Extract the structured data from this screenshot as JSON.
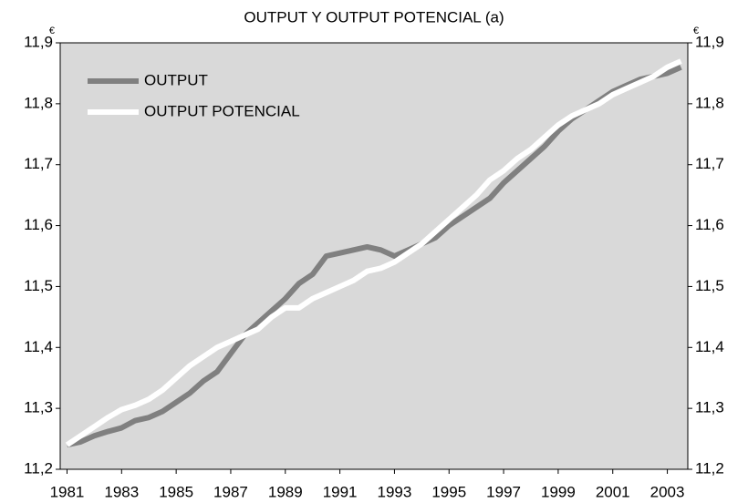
{
  "chart_data": {
    "type": "line",
    "title": "OUTPUT Y OUTPUT POTENCIAL (a)",
    "y_unit": "€",
    "y2_unit": "€",
    "x": [
      1981,
      1981.5,
      1982,
      1982.5,
      1983,
      1983.5,
      1984,
      1984.5,
      1985,
      1985.5,
      1986,
      1986.5,
      1987,
      1987.5,
      1988,
      1988.5,
      1989,
      1989.5,
      1990,
      1990.5,
      1991,
      1991.5,
      1992,
      1992.5,
      1993,
      1993.5,
      1994,
      1994.5,
      1995,
      1995.5,
      1996,
      1996.5,
      1997,
      1997.5,
      1998,
      1998.5,
      1999,
      1999.5,
      2000,
      2000.5,
      2001,
      2001.5,
      2002,
      2002.5,
      2003,
      2003.5
    ],
    "series": [
      {
        "name": "OUTPUT",
        "color": "#808080",
        "values": [
          11.24,
          11.245,
          11.255,
          11.262,
          11.268,
          11.28,
          11.285,
          11.295,
          11.31,
          11.325,
          11.345,
          11.36,
          11.39,
          11.42,
          11.44,
          11.46,
          11.48,
          11.505,
          11.52,
          11.55,
          11.555,
          11.56,
          11.565,
          11.56,
          11.55,
          11.56,
          11.57,
          11.58,
          11.6,
          11.615,
          11.63,
          11.645,
          11.67,
          11.69,
          11.71,
          11.73,
          11.755,
          11.775,
          11.79,
          11.805,
          11.82,
          11.83,
          11.84,
          11.845,
          11.85,
          11.86
        ]
      },
      {
        "name": "OUTPUT POTENCIAL",
        "color": "#ffffff",
        "values": [
          11.24,
          11.255,
          11.27,
          11.285,
          11.298,
          11.305,
          11.315,
          11.33,
          11.35,
          11.37,
          11.385,
          11.4,
          11.41,
          11.42,
          11.43,
          11.45,
          11.465,
          11.465,
          11.48,
          11.49,
          11.5,
          11.51,
          11.525,
          11.53,
          11.54,
          11.555,
          11.57,
          11.59,
          11.61,
          11.63,
          11.65,
          11.675,
          11.69,
          11.71,
          11.725,
          11.745,
          11.765,
          11.78,
          11.79,
          11.8,
          11.815,
          11.825,
          11.835,
          11.845,
          11.86,
          11.87
        ]
      }
    ],
    "xlim": [
      1980.75,
      2003.75
    ],
    "xticks": [
      1981,
      1983,
      1985,
      1987,
      1989,
      1991,
      1993,
      1995,
      1997,
      1999,
      2001,
      2003
    ],
    "ylim": [
      11.2,
      11.9
    ],
    "yticks": [
      {
        "value": 11.2,
        "label": "11,2"
      },
      {
        "value": 11.3,
        "label": "11,3"
      },
      {
        "value": 11.4,
        "label": "11,4"
      },
      {
        "value": 11.5,
        "label": "11,5"
      },
      {
        "value": 11.6,
        "label": "11,6"
      },
      {
        "value": 11.7,
        "label": "11,7"
      },
      {
        "value": 11.8,
        "label": "11,8"
      },
      {
        "value": 11.9,
        "label": "11,9"
      }
    ],
    "y2lim": [
      11.2,
      11.9
    ],
    "y2ticks": [
      {
        "value": 11.2,
        "label": "11,2"
      },
      {
        "value": 11.3,
        "label": "11,3"
      },
      {
        "value": 11.4,
        "label": "11,4"
      },
      {
        "value": 11.5,
        "label": "11,5"
      },
      {
        "value": 11.6,
        "label": "11,6"
      },
      {
        "value": 11.7,
        "label": "11,7"
      },
      {
        "value": 11.8,
        "label": "11,8"
      },
      {
        "value": 11.9,
        "label": "11,9"
      }
    ],
    "background": "#d9d9d9",
    "legend": "top-left"
  }
}
